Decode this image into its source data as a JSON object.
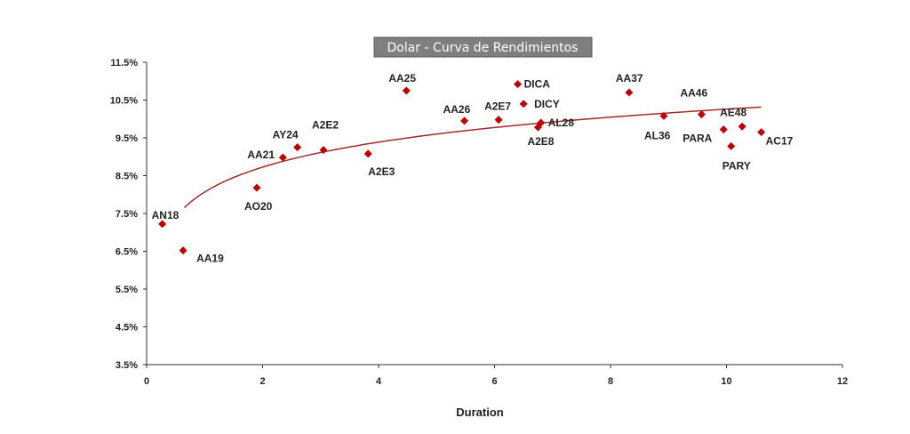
{
  "chart_data": {
    "type": "scatter",
    "title": "Dolar - Curva de Rendimientos",
    "xlabel": "Duration",
    "ylabel": "",
    "xlim": [
      0,
      12
    ],
    "ylim": [
      3.5,
      11.5
    ],
    "x_ticks": [
      "0",
      "2",
      "4",
      "6",
      "8",
      "10",
      "12"
    ],
    "y_ticks": [
      "3.5%",
      "4.5%",
      "5.5%",
      "6.5%",
      "7.5%",
      "8.5%",
      "9.5%",
      "10.5%",
      "11.5%"
    ],
    "grid": false,
    "marker_color": "#c00000",
    "trendline": {
      "type": "logarithmic",
      "color": "#a52a2a",
      "x_range": [
        0.65,
        10.6
      ]
    },
    "points": [
      {
        "label": "AN18",
        "x": 0.27,
        "y": 7.22
      },
      {
        "label": "AA19",
        "x": 0.63,
        "y": 6.52
      },
      {
        "label": "AO20",
        "x": 1.9,
        "y": 8.18
      },
      {
        "label": "AA21",
        "x": 2.35,
        "y": 8.98
      },
      {
        "label": "AY24",
        "x": 2.6,
        "y": 9.25
      },
      {
        "label": "A2E2",
        "x": 3.05,
        "y": 9.18
      },
      {
        "label": "A2E3",
        "x": 3.82,
        "y": 9.08
      },
      {
        "label": "AA25",
        "x": 4.48,
        "y": 10.75
      },
      {
        "label": "AA26",
        "x": 5.48,
        "y": 9.95
      },
      {
        "label": "A2E7",
        "x": 6.07,
        "y": 9.98
      },
      {
        "label": "DICA",
        "x": 6.4,
        "y": 10.92
      },
      {
        "label": "DICY",
        "x": 6.5,
        "y": 10.4
      },
      {
        "label": "A2E8",
        "x": 6.75,
        "y": 9.78
      },
      {
        "label": "AL28",
        "x": 6.8,
        "y": 9.9
      },
      {
        "label": "AA37",
        "x": 8.32,
        "y": 10.7
      },
      {
        "label": "AL36",
        "x": 8.92,
        "y": 10.08
      },
      {
        "label": "AA46",
        "x": 9.57,
        "y": 10.12
      },
      {
        "label": "PARA",
        "x": 9.95,
        "y": 9.72
      },
      {
        "label": "PARY",
        "x": 10.08,
        "y": 9.28
      },
      {
        "label": "AE48",
        "x": 10.27,
        "y": 9.8
      },
      {
        "label": "AC17",
        "x": 10.6,
        "y": 9.65
      }
    ]
  }
}
